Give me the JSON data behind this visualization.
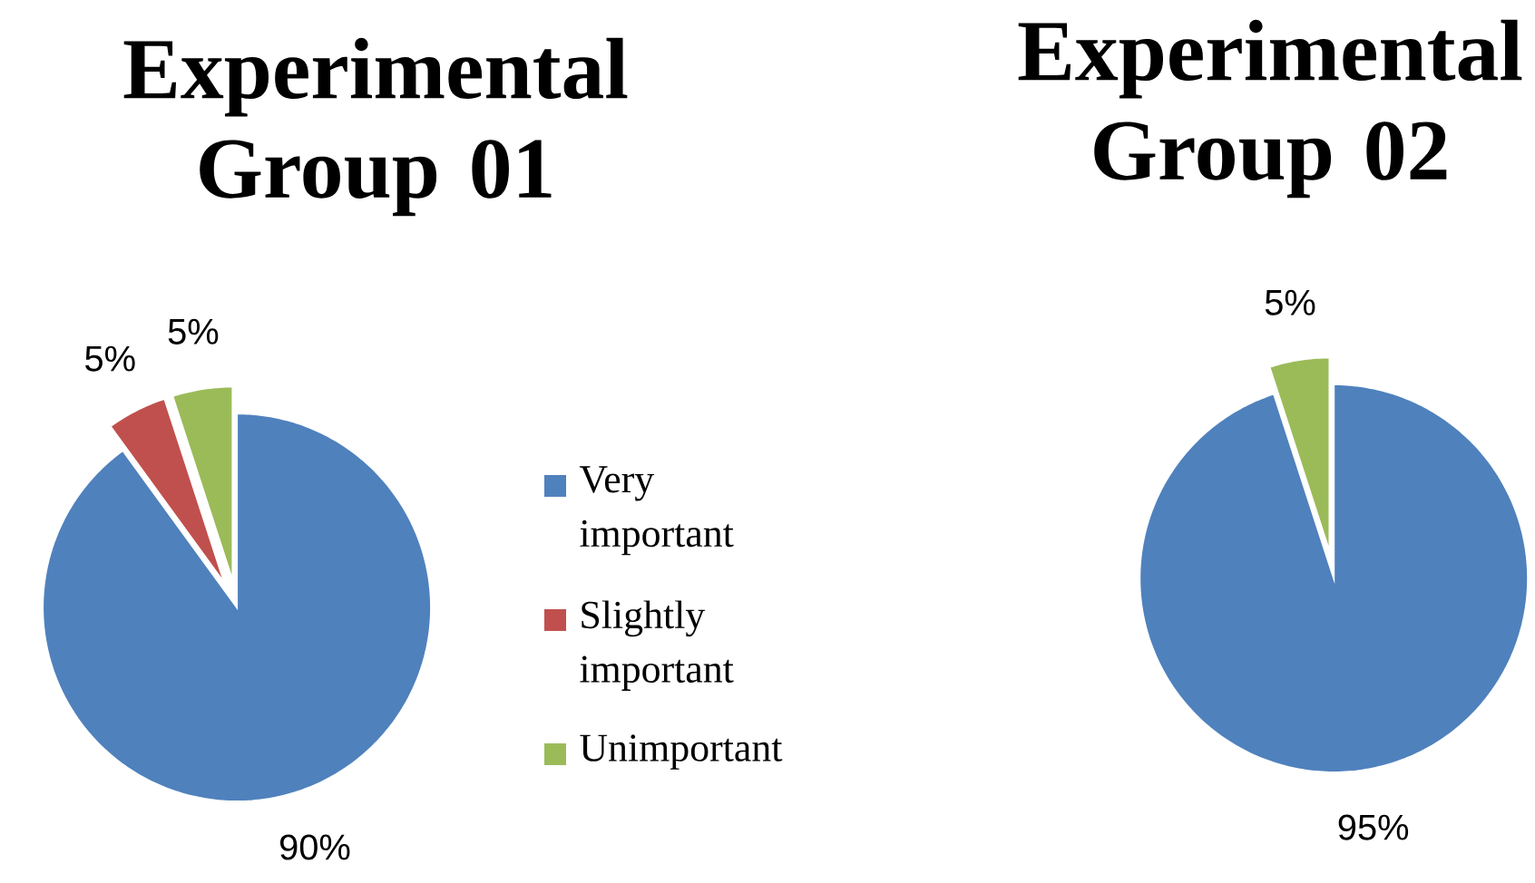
{
  "chart_data": [
    {
      "type": "pie",
      "title": "Experimental Group 01",
      "categories": [
        "Very important",
        "Slightly important",
        "Unimportant"
      ],
      "values": [
        90,
        5,
        5
      ],
      "colors": [
        "#4f81bd",
        "#c0504d",
        "#9bbb59"
      ],
      "value_labels": [
        "90%",
        "5%",
        "5%"
      ],
      "legend": "right"
    },
    {
      "type": "pie",
      "title": "Experimental Group 02",
      "categories": [
        null,
        null
      ],
      "values": [
        95,
        5
      ],
      "colors": [
        "#4f81bd",
        "#9bbb59"
      ],
      "value_labels": [
        "95%",
        "5%"
      ]
    }
  ]
}
